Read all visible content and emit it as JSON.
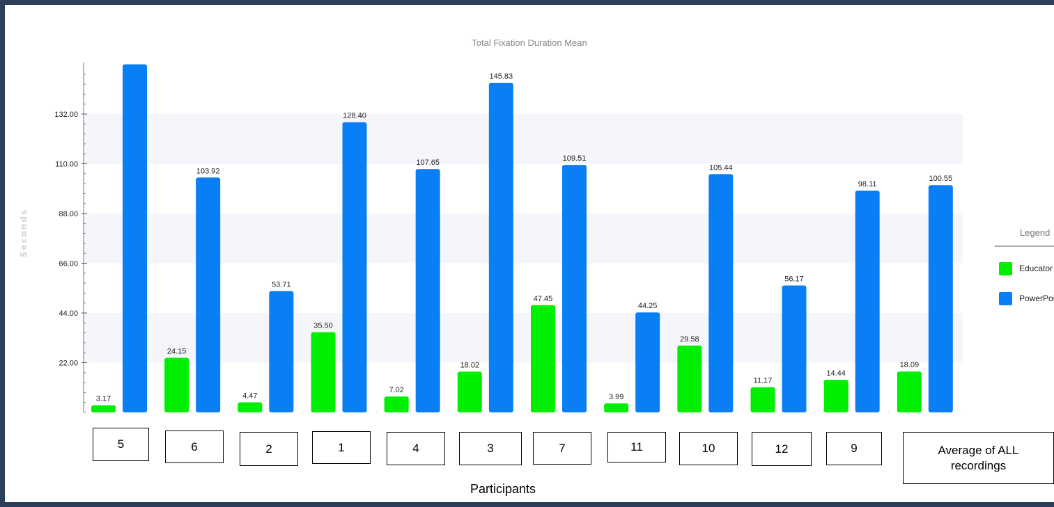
{
  "chart_data": {
    "type": "bar",
    "title": "Total Fixation Duration Mean",
    "xlabel": "Participants",
    "ylabel": "Seconds",
    "ylim": [
      0,
      154
    ],
    "yticks": [
      "22.00",
      "44.00",
      "66.00",
      "88.00",
      "110.00",
      "132.00"
    ],
    "ytick_values": [
      22,
      44,
      66,
      88,
      110,
      132
    ],
    "grid": "alternating horizontal bands",
    "legend_position": "right",
    "legend_title": "Legend",
    "categories": [
      "5",
      "6",
      "2",
      "1",
      "4",
      "3",
      "7",
      "11",
      "10",
      "12",
      "9",
      "Average of ALL recordings"
    ],
    "series": [
      {
        "name": "Educator",
        "color": "#00ee00",
        "values": [
          3.17,
          24.15,
          4.47,
          35.5,
          7.02,
          18.02,
          47.45,
          3.99,
          29.58,
          11.17,
          14.44,
          18.09
        ],
        "labels": [
          "3.17",
          "24.15",
          "4.47",
          "35.50",
          "7.02",
          "18.02",
          "47.45",
          "3.99",
          "29.58",
          "11.17",
          "14.44",
          "18.09"
        ]
      },
      {
        "name": "PowerPoint",
        "color": "#0a7ff5",
        "values": [
          154,
          103.92,
          53.71,
          128.4,
          107.65,
          145.83,
          109.51,
          44.25,
          105.44,
          56.17,
          98.11,
          100.55
        ],
        "labels": [
          "",
          "103.92",
          "53.71",
          "128.40",
          "107.65",
          "145.83",
          "109.51",
          "44.25",
          "105.44",
          "56.17",
          "98.11",
          "100.55"
        ]
      }
    ]
  }
}
